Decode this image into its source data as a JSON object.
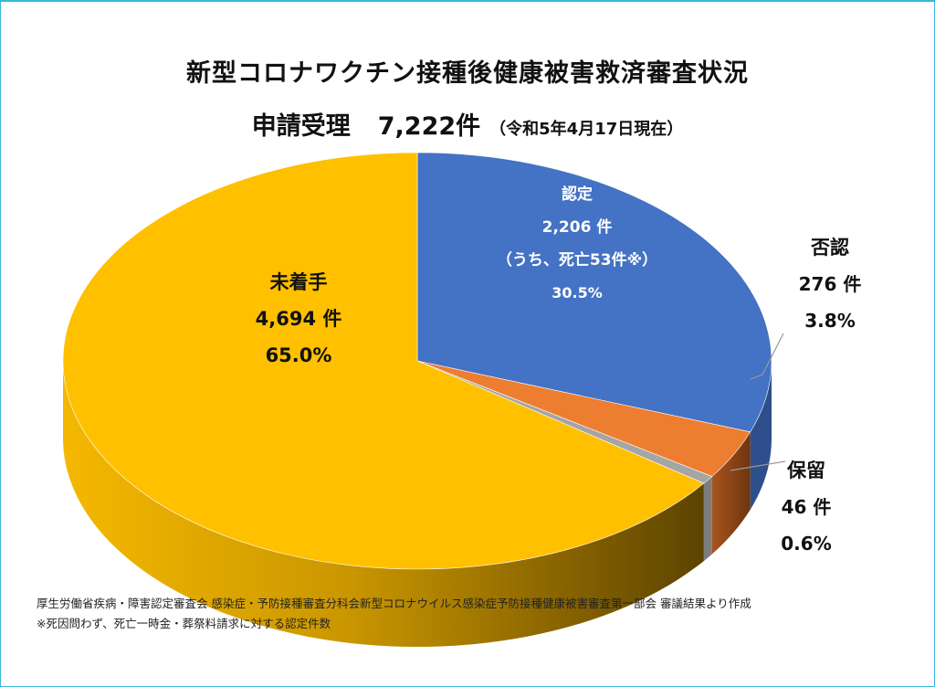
{
  "title": "新型コロナワクチン接種後健康被害救済審査状況",
  "subtitle": {
    "label": "申請受理",
    "total": "7,222件",
    "as_of": "（令和5年4月17日現在）"
  },
  "colors": {
    "approved": "#4472c4",
    "denied": "#ed7d31",
    "pending": "#a5a5a5",
    "unprocessed": "#ffc000",
    "frame": "#39b6d8"
  },
  "chart_data": {
    "type": "pie",
    "title": "新型コロナワクチン接種後健康被害救済審査状況",
    "total": 7222,
    "slices": [
      {
        "key": "approved",
        "name": "認定",
        "value": 2206,
        "count_label": "2,206 件",
        "note": "（うち、死亡53件※）",
        "percent": 30.5,
        "percent_label": "30.5%"
      },
      {
        "key": "denied",
        "name": "否認",
        "value": 276,
        "count_label": "276 件",
        "percent": 3.8,
        "percent_label": "3.8%"
      },
      {
        "key": "pending",
        "name": "保留",
        "value": 46,
        "count_label": "46 件",
        "percent": 0.6,
        "percent_label": "0.6%"
      },
      {
        "key": "unprocessed",
        "name": "未着手",
        "value": 4694,
        "count_label": "4,694 件",
        "percent": 65.0,
        "percent_label": "65.0%"
      }
    ]
  },
  "notes": [
    "厚生労働省疾病・障害認定審査会 感染症・予防接種審査分科会新型コロナウイルス感染症予防接種健康被害審査第一部会 審議結果より作成",
    "※死因問わず、死亡一時金・葬祭料請求に対する認定件数"
  ]
}
